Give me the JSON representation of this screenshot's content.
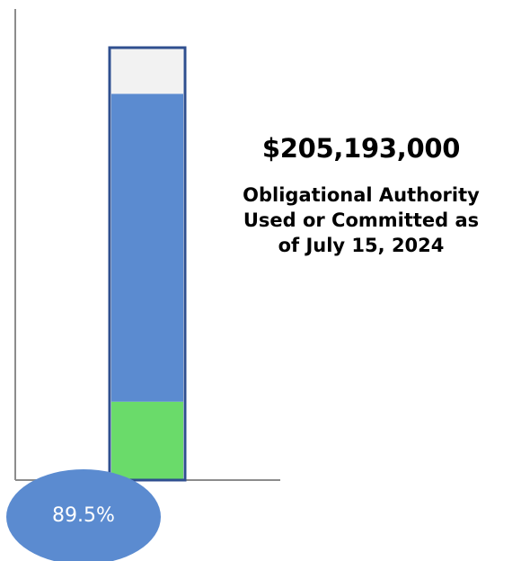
{
  "chart_data": {
    "type": "bar",
    "orientation": "vertical",
    "stacked": true,
    "value_unit": "percent",
    "ylim": [
      0,
      100
    ],
    "segments": [
      {
        "role": "green-base",
        "value": 18
      },
      {
        "role": "blue-committed",
        "value": 71.5
      },
      {
        "role": "gray-remaining",
        "value": 10.5
      }
    ],
    "total_percent_label": "89.5%"
  },
  "annotation": {
    "amount": "$205,193,000",
    "caption": "Obligational Authority\nUsed or Committed as\nof July 15, 2024"
  },
  "colors": {
    "green": "#6ADB6A",
    "blue": "#5B8BD0",
    "gray": "#F2F2F2",
    "outline": "#2F4F8F",
    "axis": "#8C8C8C",
    "badge": "#5B8BD0",
    "badge_text": "#FFFFFF"
  }
}
